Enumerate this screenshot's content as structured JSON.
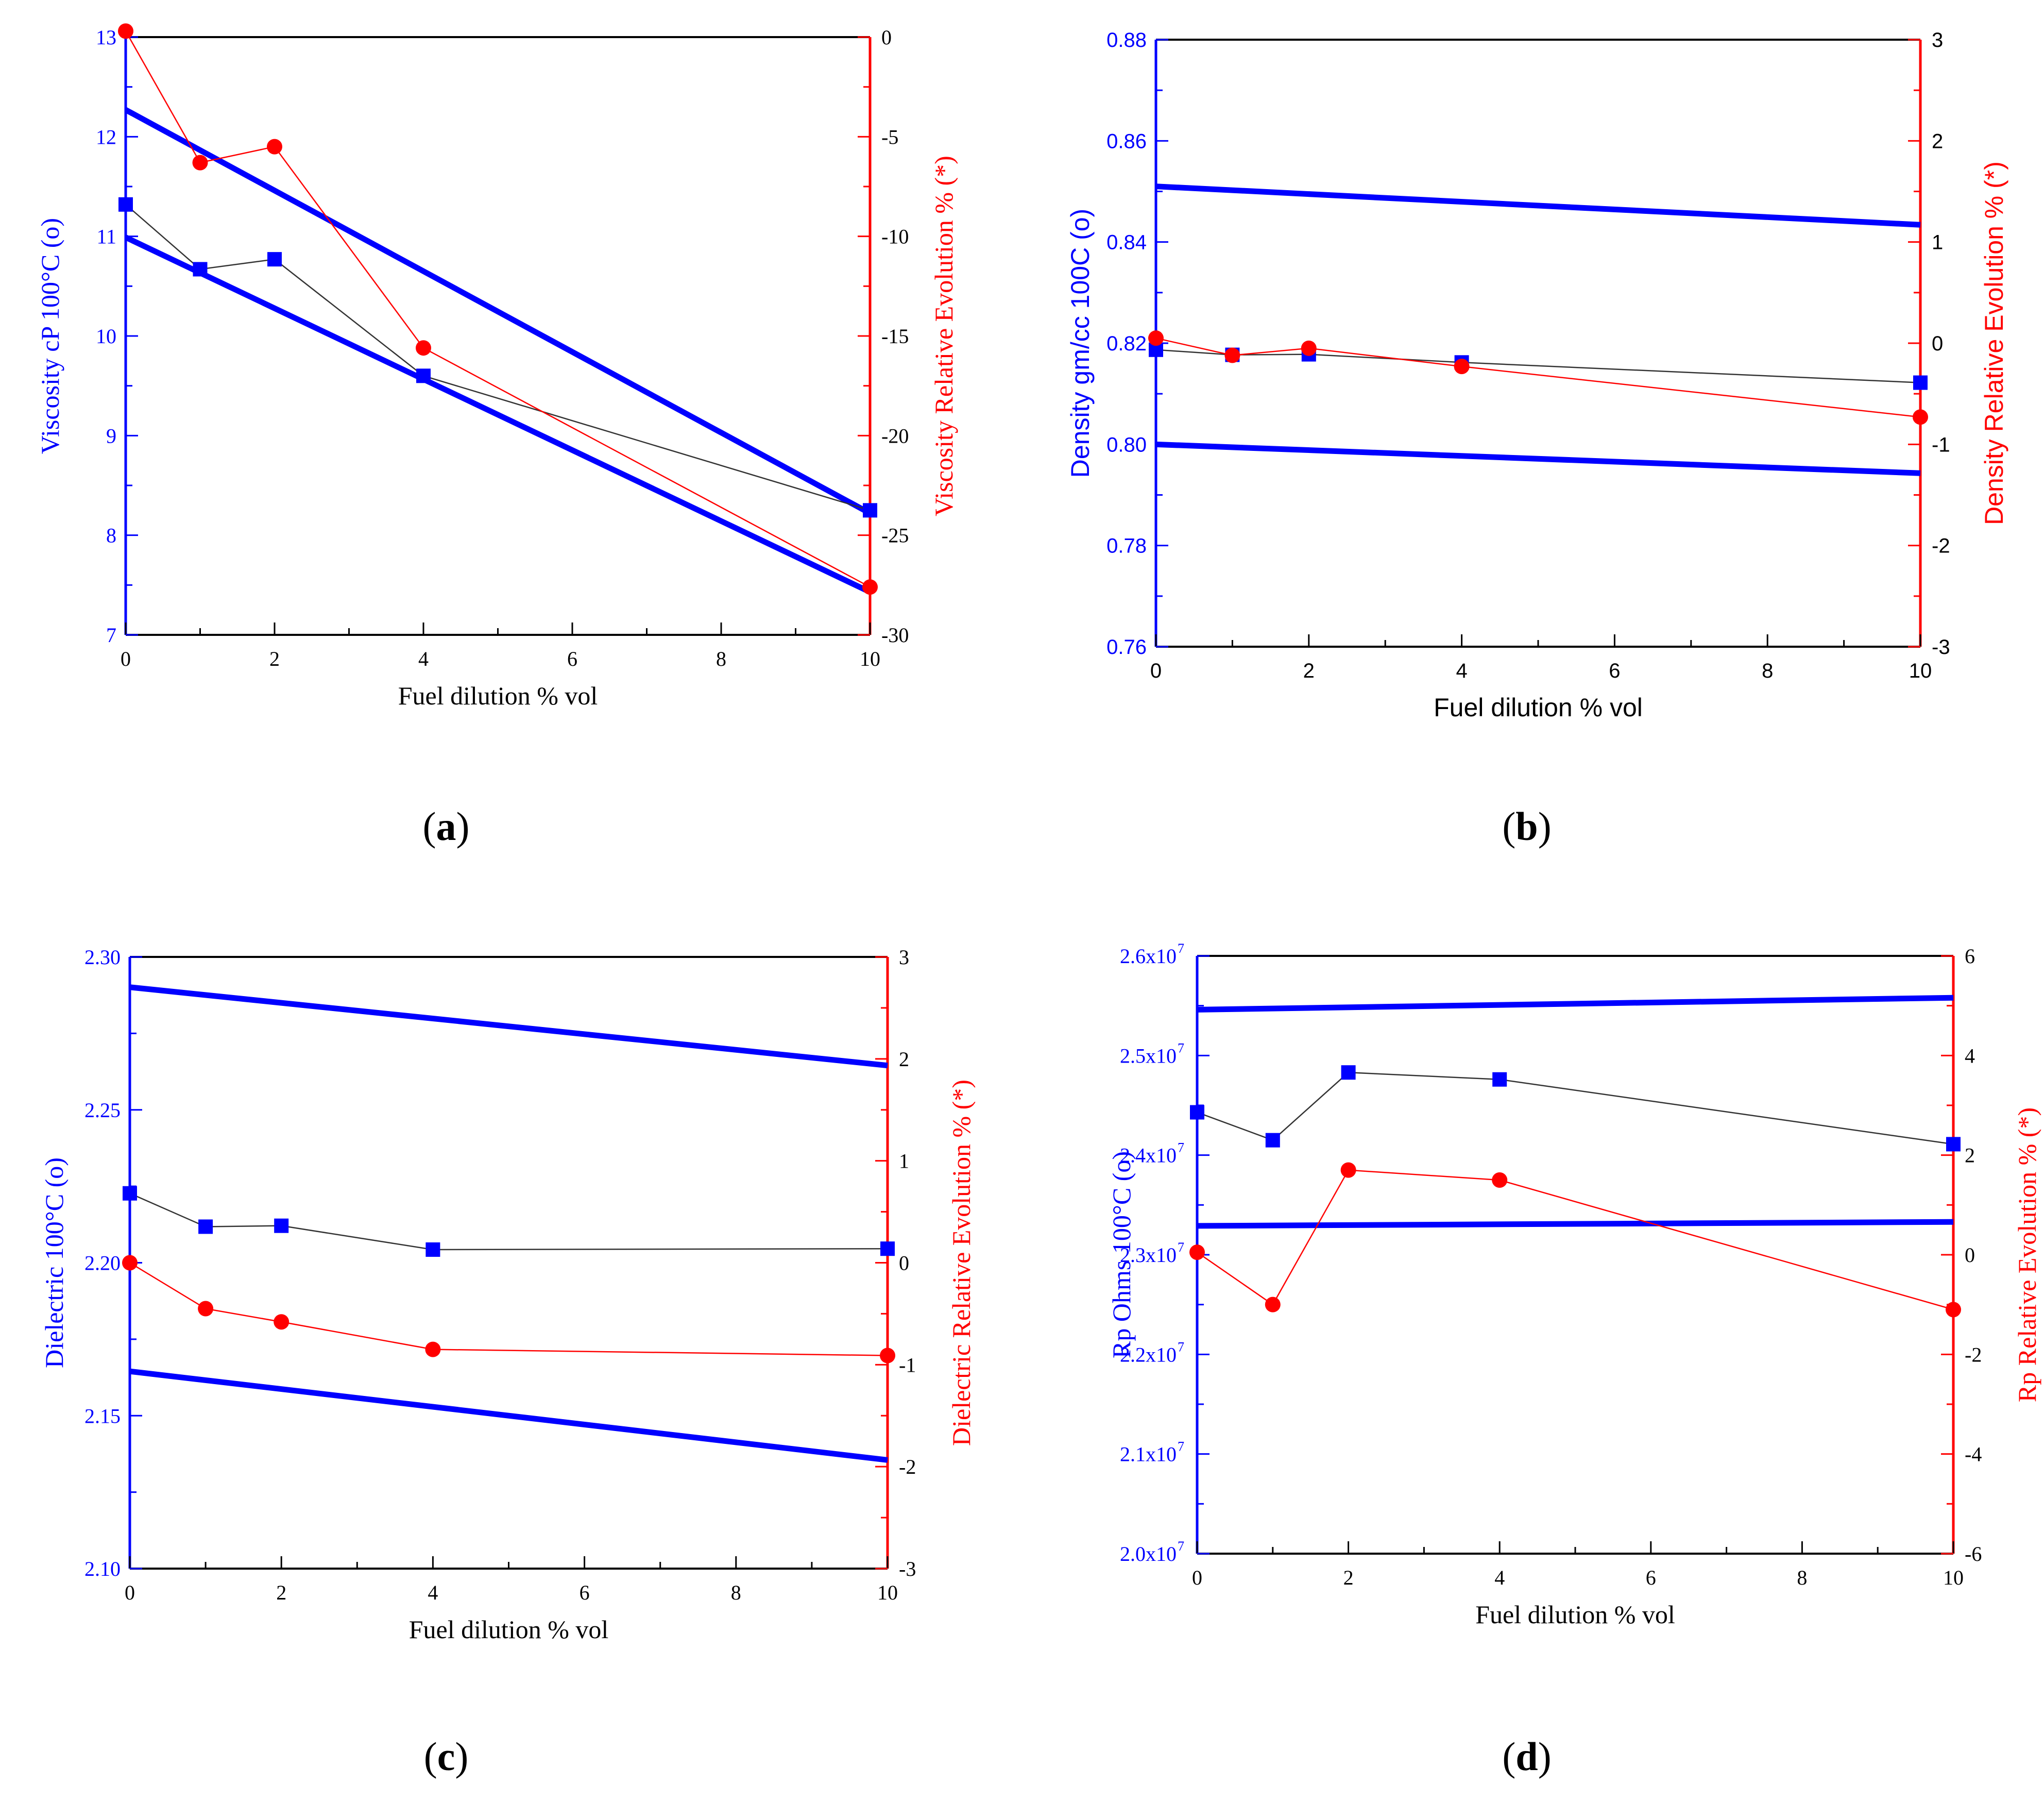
{
  "chart_data": [
    {
      "id": "a",
      "type": "line",
      "panel_label": "a",
      "font": "serif",
      "x_ticks": [
        0,
        2,
        4,
        6,
        8,
        10
      ],
      "xlim": [
        0,
        10
      ],
      "xlabel": "Fuel dilution % vol",
      "left_axis": {
        "label": "Viscosity cP 100°C (o)",
        "lim": [
          7,
          13
        ],
        "ticks": [
          "7",
          "8",
          "9",
          "10",
          "11",
          "12",
          "13"
        ],
        "tick_values": [
          7,
          8,
          9,
          10,
          11,
          12,
          13
        ],
        "color": "#0000ff"
      },
      "right_axis": {
        "label": "Viscosity Relative Evolution % (*)",
        "lim": [
          -30,
          0
        ],
        "ticks": [
          "-30",
          "-25",
          "-20",
          "-15",
          "-10",
          "-5",
          "0"
        ],
        "tick_values": [
          -30,
          -25,
          -20,
          -15,
          -10,
          -5,
          0
        ],
        "color": "#ff0000"
      },
      "series": [
        {
          "name": "Viscosity",
          "axis": "left",
          "marker": "square",
          "color": "#0000ff",
          "x": [
            0,
            1,
            2,
            4,
            10
          ],
          "y": [
            11.32,
            10.67,
            10.77,
            9.6,
            8.25
          ]
        },
        {
          "name": "Viscosity Relative Evolution",
          "axis": "right",
          "marker": "circle",
          "color": "#ff0000",
          "x": [
            0,
            1,
            2,
            4,
            10
          ],
          "y": [
            0.3,
            -6.3,
            -5.5,
            -15.6,
            -27.6
          ]
        }
      ],
      "limit_lines": [
        {
          "axis": "left",
          "x": [
            0,
            10
          ],
          "y": [
            12.27,
            8.22
          ]
        },
        {
          "axis": "left",
          "x": [
            0,
            10
          ],
          "y": [
            10.99,
            7.43
          ]
        }
      ]
    },
    {
      "id": "b",
      "type": "line",
      "panel_label": "b",
      "font": "sans",
      "x_ticks": [
        0,
        2,
        4,
        6,
        8,
        10
      ],
      "xlim": [
        0,
        10
      ],
      "xlabel": "Fuel dilution % vol",
      "left_axis": {
        "label": "Density gm/cc 100C (o)",
        "lim": [
          0.76,
          0.88
        ],
        "ticks": [
          "0.76",
          "0.78",
          "0.80",
          "0.82",
          "0.84",
          "0.86",
          "0.88"
        ],
        "tick_values": [
          0.76,
          0.78,
          0.8,
          0.82,
          0.84,
          0.86,
          0.88
        ],
        "color": "#0000ff"
      },
      "right_axis": {
        "label": "Density Relative Evolution % (*)",
        "lim": [
          -3,
          3
        ],
        "ticks": [
          "-3",
          "-2",
          "-1",
          "0",
          "1",
          "2",
          "3"
        ],
        "tick_values": [
          -3,
          -2,
          -1,
          0,
          1,
          2,
          3
        ],
        "color": "#ff0000"
      },
      "series": [
        {
          "name": "Density",
          "axis": "left",
          "marker": "square",
          "color": "#0000ff",
          "x": [
            0,
            1,
            2,
            4,
            10
          ],
          "y": [
            0.8187,
            0.8177,
            0.8178,
            0.8162,
            0.8122
          ]
        },
        {
          "name": "Density Relative Evolution",
          "axis": "right",
          "marker": "circle",
          "color": "#ff0000",
          "x": [
            0,
            1,
            2,
            4,
            10
          ],
          "y": [
            0.05,
            -0.12,
            -0.05,
            -0.23,
            -0.73
          ]
        }
      ],
      "limit_lines": [
        {
          "axis": "left",
          "x": [
            0,
            10
          ],
          "y": [
            0.851,
            0.8434
          ]
        },
        {
          "axis": "left",
          "x": [
            0,
            10
          ],
          "y": [
            0.8,
            0.7943
          ]
        }
      ]
    },
    {
      "id": "c",
      "type": "line",
      "panel_label": "c",
      "font": "serif",
      "x_ticks": [
        0,
        2,
        4,
        6,
        8,
        10
      ],
      "xlim": [
        0,
        10
      ],
      "xlabel": "Fuel dilution % vol",
      "left_axis": {
        "label": "Dielectric 100°C (o)",
        "lim": [
          2.1,
          2.3
        ],
        "ticks": [
          "2.10",
          "2.15",
          "2.20",
          "2.25",
          "2.30"
        ],
        "tick_values": [
          2.1,
          2.15,
          2.2,
          2.25,
          2.3
        ],
        "color": "#0000ff"
      },
      "right_axis": {
        "label": "Dielectric Relative Evolution % (*)",
        "lim": [
          -3,
          3
        ],
        "ticks": [
          "-3",
          "-2",
          "-1",
          "0",
          "1",
          "2",
          "3"
        ],
        "tick_values": [
          -3,
          -2,
          -1,
          0,
          1,
          2,
          3
        ],
        "color": "#ff0000"
      },
      "series": [
        {
          "name": "Dielectric",
          "axis": "left",
          "marker": "square",
          "color": "#0000ff",
          "x": [
            0,
            1,
            2,
            4,
            10
          ],
          "y": [
            2.2227,
            2.2118,
            2.2121,
            2.2043,
            2.2046
          ]
        },
        {
          "name": "Dielectric Relative Evolution",
          "axis": "right",
          "marker": "circle",
          "color": "#ff0000",
          "x": [
            0,
            1,
            2,
            4,
            10
          ],
          "y": [
            0.0,
            -0.45,
            -0.58,
            -0.85,
            -0.91
          ]
        }
      ],
      "limit_lines": [
        {
          "axis": "left",
          "x": [
            0,
            10
          ],
          "y": [
            2.2901,
            2.2645
          ]
        },
        {
          "axis": "left",
          "x": [
            0,
            10
          ],
          "y": [
            2.1645,
            2.1355
          ]
        }
      ]
    },
    {
      "id": "d",
      "type": "line",
      "panel_label": "d",
      "font": "serif",
      "x_ticks": [
        0,
        2,
        4,
        6,
        8,
        10
      ],
      "xlim": [
        0,
        10
      ],
      "xlabel": "Fuel dilution % vol",
      "left_axis": {
        "label": "Rp Ohms 100°C (o)",
        "lim": [
          20000000,
          26000000
        ],
        "ticks": [
          "2.0x10",
          "2.1x10",
          "2.2x10",
          "2.3x10",
          "2.4x10",
          "2.5x10",
          "2.6x10"
        ],
        "tick_values": [
          20000000,
          21000000,
          22000000,
          23000000,
          24000000,
          25000000,
          26000000
        ],
        "tick_exponent": "7",
        "color": "#0000ff"
      },
      "right_axis": {
        "label": "Rp Relative Evolution % (*)",
        "lim": [
          -6,
          6
        ],
        "ticks": [
          "-6",
          "-4",
          "-2",
          "0",
          "2",
          "4",
          "6"
        ],
        "tick_values": [
          -6,
          -4,
          -2,
          0,
          2,
          4,
          6
        ],
        "color": "#ff0000"
      },
      "series": [
        {
          "name": "Rp",
          "axis": "left",
          "marker": "square",
          "color": "#0000ff",
          "x": [
            0,
            1,
            2,
            4,
            10
          ],
          "y": [
            24430000,
            24150000,
            24830000,
            24760000,
            24110000
          ]
        },
        {
          "name": "Rp Relative Evolution",
          "axis": "right",
          "marker": "circle",
          "color": "#ff0000",
          "x": [
            0,
            1,
            2,
            4,
            10
          ],
          "y": [
            0.05,
            -1.0,
            1.7,
            1.5,
            -1.1
          ]
        }
      ],
      "limit_lines": [
        {
          "axis": "left",
          "x": [
            0,
            10
          ],
          "y": [
            25460000,
            25580000
          ]
        },
        {
          "axis": "left",
          "x": [
            0,
            10
          ],
          "y": [
            23290000,
            23330000
          ]
        }
      ]
    }
  ]
}
